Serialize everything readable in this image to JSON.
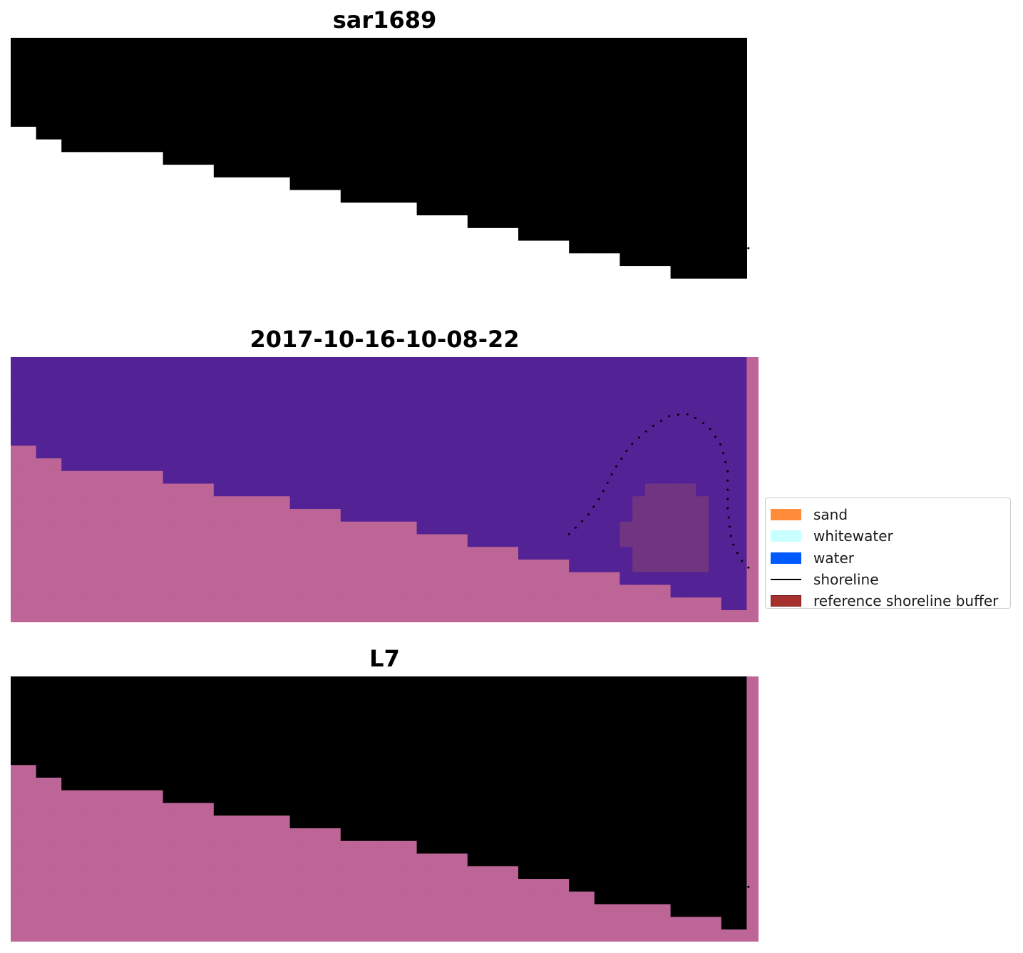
{
  "panels": [
    {
      "title": "sar1689",
      "kind": "rgb"
    },
    {
      "title": "2017-10-16-10-08-22",
      "kind": "classification"
    },
    {
      "title": "L7",
      "kind": "index"
    }
  ],
  "legend": {
    "placement": "center-right",
    "items": [
      {
        "label": "sand",
        "color": "#ff8c3a",
        "type": "patch"
      },
      {
        "label": "whitewater",
        "color": "#c8ffff",
        "type": "patch"
      },
      {
        "label": "water",
        "color": "#005aff",
        "type": "patch"
      },
      {
        "label": "shoreline",
        "color": "#000000",
        "type": "line"
      },
      {
        "label": "reference shoreline buffer",
        "color": "#a6302e",
        "edge": "#7a1a1a",
        "type": "patch"
      }
    ]
  },
  "colors": {
    "land_mask": "#bc6596",
    "classified_water": "#532295",
    "buffer_overlay": "#7a3a7a",
    "index_low": "#5a0aa8",
    "index_mid": "#6c1a9c",
    "index_high": "#c8003a",
    "image_water": "#4f8fd0",
    "image_whitewater": "#f5f5e6",
    "shoreline_dots": "#000000"
  },
  "chart_data": {
    "type": "heatmap",
    "figure": "image panels with classification and shoreline overlay",
    "grid": false,
    "axes_visible": false,
    "shoreline": {
      "style": "dotted",
      "color": "#000000"
    }
  }
}
